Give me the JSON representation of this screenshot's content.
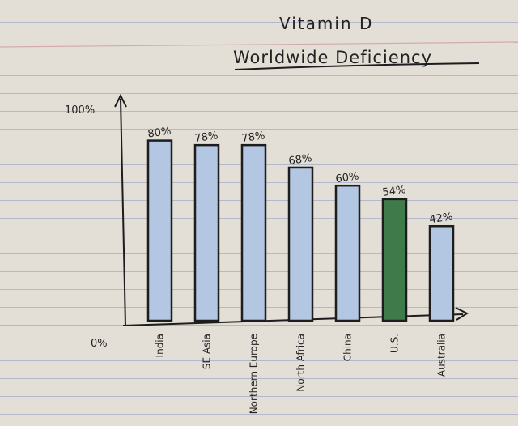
{
  "title": "Vitamin D",
  "subtitle": "Worldwide Deficiency",
  "colors": {
    "bar_blue": "#b3c6e2",
    "bar_green": "#3f7a4a",
    "ink": "#1d1d1d",
    "paper": "#e3dfd6",
    "rule_line": "#7e8cbe"
  },
  "chart_data": {
    "type": "bar",
    "title": "Vitamin D",
    "subtitle": "Worldwide Deficiency",
    "categories": [
      "India",
      "SE Asia",
      "Northern Europe",
      "North Africa",
      "China",
      "U.S.",
      "Australia"
    ],
    "values": [
      80,
      78,
      78,
      68,
      60,
      54,
      42
    ],
    "value_labels": [
      "80%",
      "78%",
      "78%",
      "68%",
      "60%",
      "54%",
      "42%"
    ],
    "ylim": [
      0,
      100
    ],
    "y_tick_labels": [
      "0%",
      "100%"
    ],
    "bar_colors": [
      "#b3c6e2",
      "#b3c6e2",
      "#b3c6e2",
      "#b3c6e2",
      "#b3c6e2",
      "#3f7a4a",
      "#b3c6e2"
    ],
    "grid": false,
    "legend": "none"
  }
}
